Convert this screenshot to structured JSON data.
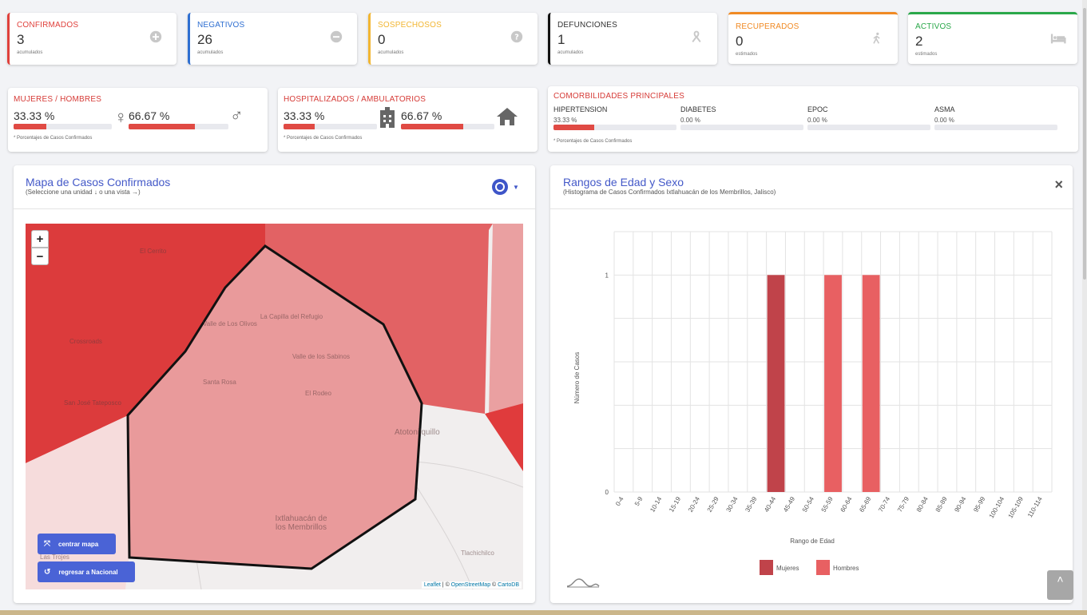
{
  "stats": [
    {
      "title": "CONFIRMADOS",
      "value": "3",
      "sub": "acumulados",
      "color": "#e0413c",
      "icon": "plus-circle-icon"
    },
    {
      "title": "NEGATIVOS",
      "value": "26",
      "sub": "acumulados",
      "color": "#2f6fd1",
      "icon": "minus-circle-icon"
    },
    {
      "title": "SOSPECHOSOS",
      "value": "0",
      "sub": "acumulados",
      "color": "#f2b632",
      "icon": "question-circle-icon"
    },
    {
      "title": "DEFUNCIONES",
      "value": "1",
      "sub": "acumulados",
      "color": "#111111",
      "icon": "ribbon-icon"
    },
    {
      "title": "RECUPERADOS",
      "value": "0",
      "sub": "estimados",
      "color": "#f08a24",
      "icon": "walking-icon"
    },
    {
      "title": "ACTIVOS",
      "value": "2",
      "sub": "estimados",
      "color": "#2aa84a",
      "icon": "bed-icon"
    }
  ],
  "gender": {
    "title": "MUJERES / HOMBRES",
    "women_pct": "33.33 %",
    "women_value": 0.3333,
    "men_pct": "66.67 %",
    "men_value": 0.6667,
    "note": "* Porcentajes  de Casos Confirmados"
  },
  "hospital": {
    "title": "HOSPITALIZADOS / AMBULATORIOS",
    "hosp_pct": "33.33 %",
    "hosp_value": 0.3333,
    "amb_pct": "66.67 %",
    "amb_value": 0.6667,
    "note": "* Porcentajes  de Casos Confirmados"
  },
  "comorb": {
    "title": "COMORBILIDADES PRINCIPALES",
    "items": [
      {
        "name": "HIPERTENSION",
        "pct": "33.33 %",
        "value": 0.3333
      },
      {
        "name": "DIABETES",
        "pct": "0.00 %",
        "value": 0
      },
      {
        "name": "EPOC",
        "pct": "0.00 %",
        "value": 0
      },
      {
        "name": "ASMA",
        "pct": "0.00 %",
        "value": 0
      }
    ],
    "note": "* Porcentajes  de Casos Confirmados"
  },
  "map": {
    "title": "Mapa de Casos Confirmados",
    "subtitle": "(Seleccione una unidad ↓ o una vista →)",
    "zoom_in": "+",
    "zoom_out": "−",
    "center_btn": "centrar mapa",
    "national_btn": "regresar a Nacional",
    "labels": [
      "El Cerrito",
      "La Capilla del Refugio",
      "Valle de Los Olivos",
      "Valle de los Sabinos",
      "Santa Rosa",
      "El Rodeo",
      "Atotonilquillo",
      "Ixtlahuacán de los Membrillos",
      "Las Trojes",
      "Tlachichilco",
      "Crossroads",
      "San José Tateposco"
    ],
    "attrib_leaflet": "Leaflet",
    "attrib_sep1": " | © ",
    "attrib_osm": "OpenStreetMap",
    "attrib_sep2": " © ",
    "attrib_carto": "CartoDB"
  },
  "chart_panel": {
    "title": "Rangos de Edad y Sexo",
    "subtitle": "(Histograma de Casos Confirmados Ixtlahuacán de los Membrillos, Jalisco)",
    "close": "×"
  },
  "chart_data": {
    "type": "bar",
    "xlabel": "Rango de Edad",
    "ylabel": "Número de Casos",
    "ylim": [
      0,
      1
    ],
    "yticks": [
      "0",
      "1"
    ],
    "categories": [
      "0-4",
      "5-9",
      "10-14",
      "15-19",
      "20-24",
      "25-29",
      "30-34",
      "35-39",
      "40-44",
      "45-49",
      "50-54",
      "55-59",
      "60-64",
      "65-69",
      "70-74",
      "75-79",
      "80-84",
      "85-89",
      "90-94",
      "95-99",
      "100-104",
      "105-109",
      "110-114"
    ],
    "series": [
      {
        "name": "Mujeres",
        "color": "#c0434a",
        "values": [
          0,
          0,
          0,
          0,
          0,
          0,
          0,
          0,
          1,
          0,
          0,
          0,
          0,
          0,
          0,
          0,
          0,
          0,
          0,
          0,
          0,
          0,
          0
        ]
      },
      {
        "name": "Hombres",
        "color": "#e86062",
        "values": [
          0,
          0,
          0,
          0,
          0,
          0,
          0,
          0,
          0,
          0,
          0,
          1,
          0,
          1,
          0,
          0,
          0,
          0,
          0,
          0,
          0,
          0,
          0
        ]
      }
    ],
    "grid": true,
    "legend": "bottom"
  }
}
